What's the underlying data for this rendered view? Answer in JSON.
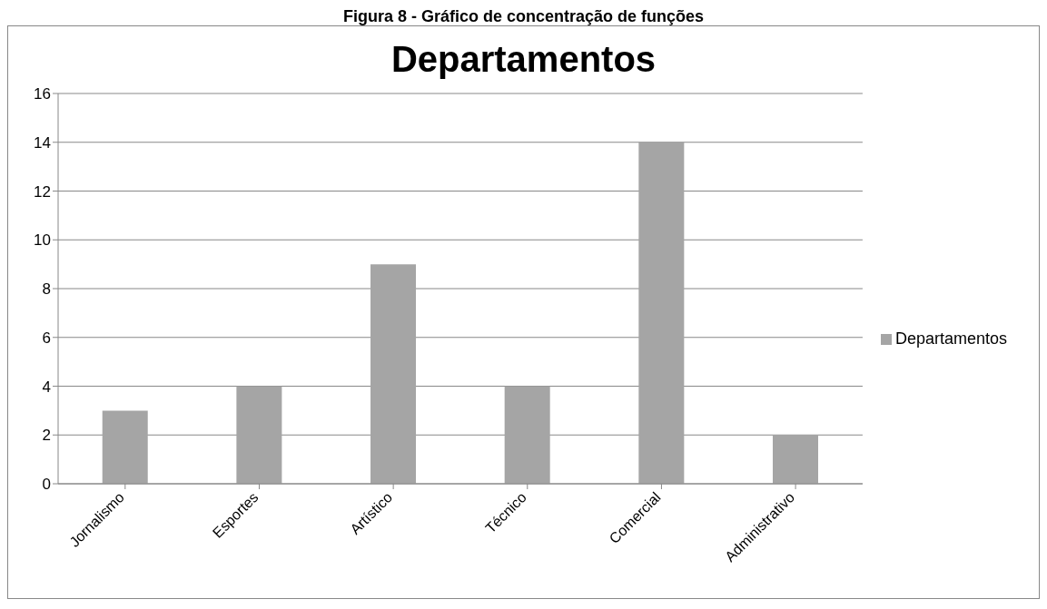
{
  "chart_data": {
    "type": "bar",
    "title": "Departamentos",
    "annotations": [
      "Figura 8 - Gráfico de concentração de funções"
    ],
    "categories": [
      "Jornalismo",
      "Esportes",
      "Artístico",
      "Técnico",
      "Comercial",
      "Administrativo"
    ],
    "series": [
      {
        "name": "Departamentos",
        "color": "#a5a5a5",
        "values": [
          3,
          4,
          9,
          4,
          14,
          2
        ]
      }
    ],
    "ylim": [
      0,
      16
    ],
    "yticks": [
      0,
      2,
      4,
      6,
      8,
      10,
      12,
      14,
      16
    ],
    "grid": "y",
    "legend": "right"
  }
}
